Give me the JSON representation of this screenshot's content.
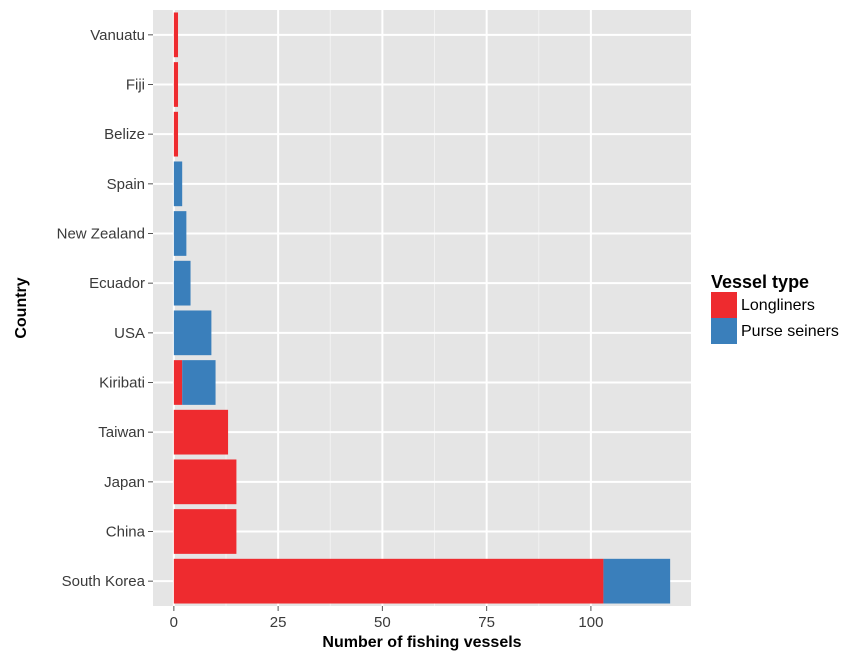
{
  "chart_data": {
    "type": "bar",
    "orientation": "horizontal",
    "stacked": true,
    "xlabel": "Number of fishing vessels",
    "ylabel": "Country",
    "xlim": [
      -5,
      124
    ],
    "xticks": [
      0,
      25,
      50,
      75,
      100
    ],
    "grid": true,
    "legend_title": "Vessel type",
    "legend_position": "right",
    "categories": [
      "Vanuatu",
      "Fiji",
      "Belize",
      "Spain",
      "New Zealand",
      "Ecuador",
      "USA",
      "Kiribati",
      "Taiwan",
      "Japan",
      "China",
      "South Korea"
    ],
    "series": [
      {
        "name": "Longliners",
        "color": "#ee2b2f",
        "values": [
          1,
          1,
          1,
          0,
          0,
          0,
          0,
          2,
          13,
          15,
          15,
          103
        ]
      },
      {
        "name": "Purse seiners",
        "color": "#3a7fbb",
        "values": [
          0,
          0,
          0,
          2,
          3,
          4,
          9,
          8,
          0,
          0,
          0,
          16
        ]
      }
    ]
  }
}
